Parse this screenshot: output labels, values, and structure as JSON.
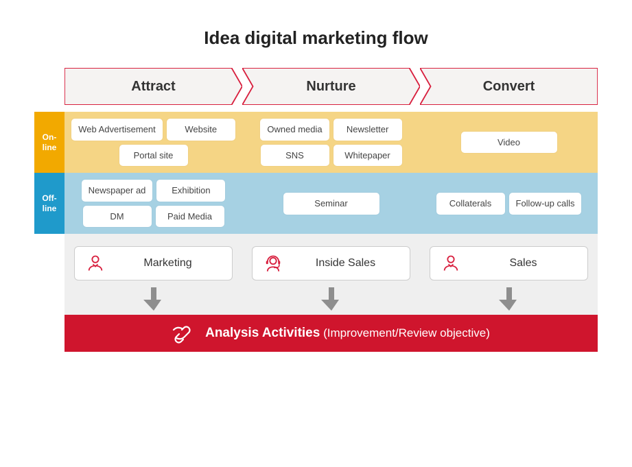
{
  "title": "Idea digital marketing flow",
  "colors": {
    "phase_border": "#d81f3e",
    "phase_fill": "#f5f3f2",
    "online_label_bg": "#f2a900",
    "online_body_bg": "#f5d585",
    "offline_label_bg": "#1f9acb",
    "offline_body_bg": "#a6d1e3",
    "roles_bg": "#efefef",
    "role_border": "#cccccc",
    "role_icon": "#d81f3e",
    "arrow": "#8e8e8e",
    "analysis_bg": "#cf152d",
    "text": "#333333",
    "chip_bg": "#ffffff"
  },
  "phases": [
    {
      "label": "Attract"
    },
    {
      "label": "Nurture"
    },
    {
      "label": "Convert"
    }
  ],
  "rows": [
    {
      "key": "online",
      "label": "On-\nline",
      "label_bg": "#f2a900",
      "body_bg": "#f5d585",
      "cells": [
        {
          "chips": [
            "Web Advertisement",
            "Website",
            "Portal site"
          ]
        },
        {
          "chips": [
            "Owned media",
            "Newsletter",
            "SNS",
            "Whitepaper"
          ]
        },
        {
          "chips": [
            "Video"
          ]
        }
      ]
    },
    {
      "key": "offline",
      "label": "Off-\nline",
      "label_bg": "#1f9acb",
      "body_bg": "#a6d1e3",
      "cells": [
        {
          "chips": [
            "Newspaper ad",
            "Exhibition",
            "DM",
            "Paid Media"
          ]
        },
        {
          "chips": [
            "Seminar"
          ]
        },
        {
          "chips": [
            "Collaterals",
            "Follow-up calls"
          ]
        }
      ]
    }
  ],
  "roles": [
    {
      "label": "Marketing",
      "icon": "person"
    },
    {
      "label": "Inside Sales",
      "icon": "headset"
    },
    {
      "label": "Sales",
      "icon": "person"
    }
  ],
  "analysis": {
    "title": "Analysis Activities",
    "subtitle": "(Improvement/Review objective)"
  }
}
